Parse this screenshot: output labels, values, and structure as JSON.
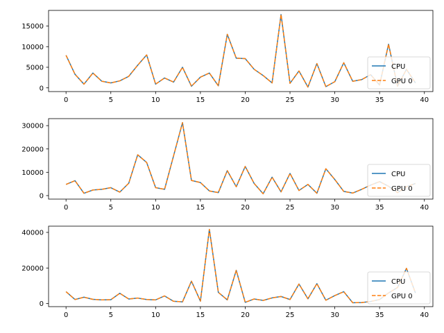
{
  "chart_data": [
    {
      "type": "line",
      "title": "",
      "xlabel": "",
      "ylabel": "",
      "xlim": [
        -1.95,
        40.95
      ],
      "ylim": [
        -900,
        18800
      ],
      "xticks": [
        0,
        5,
        10,
        15,
        20,
        25,
        30,
        35,
        40
      ],
      "xtick_labels": [
        "0",
        "5",
        "10",
        "15",
        "20",
        "25",
        "30",
        "35",
        "40"
      ],
      "yticks": [
        0,
        5000,
        10000,
        15000
      ],
      "ytick_labels": [
        "0",
        "5000",
        "10000",
        "15000"
      ],
      "legend": {
        "placement": "lower-right",
        "entries": [
          "CPU",
          "GPU 0"
        ]
      },
      "grid": false,
      "x": [
        0,
        1,
        2,
        3,
        4,
        5,
        6,
        7,
        8,
        9,
        10,
        11,
        12,
        13,
        14,
        15,
        16,
        17,
        18,
        19,
        20,
        21,
        22,
        23,
        24,
        25,
        26,
        27,
        28,
        29,
        30,
        31,
        32,
        33,
        34,
        35,
        36,
        37,
        38,
        39
      ],
      "series": [
        {
          "name": "CPU",
          "color": "#1f77b4",
          "style": "solid",
          "values": [
            7900,
            3300,
            900,
            3600,
            1600,
            1200,
            1700,
            2800,
            5500,
            8000,
            900,
            2400,
            1400,
            5000,
            400,
            2600,
            3600,
            500,
            13000,
            7200,
            7100,
            4500,
            3000,
            1200,
            17800,
            1100,
            4100,
            200,
            5900,
            300,
            1500,
            6100,
            1600,
            2000,
            3200,
            700,
            10600,
            400,
            4500,
            1200
          ]
        },
        {
          "name": "GPU 0",
          "color": "#ff7f0e",
          "style": "dashed",
          "values": [
            7900,
            3300,
            900,
            3600,
            1600,
            1200,
            1700,
            2800,
            5500,
            8000,
            900,
            2400,
            1400,
            5000,
            400,
            2600,
            3600,
            500,
            13000,
            7200,
            7100,
            4500,
            3000,
            1200,
            17800,
            1100,
            4100,
            200,
            5900,
            300,
            1500,
            6100,
            1600,
            2000,
            3200,
            700,
            10600,
            400,
            4500,
            1200
          ]
        }
      ]
    },
    {
      "type": "line",
      "title": "",
      "xlabel": "",
      "ylabel": "",
      "xlim": [
        -1.95,
        40.95
      ],
      "ylim": [
        -1500,
        33000
      ],
      "xticks": [
        0,
        5,
        10,
        15,
        20,
        25,
        30,
        35,
        40
      ],
      "xtick_labels": [
        "0",
        "5",
        "10",
        "15",
        "20",
        "25",
        "30",
        "35",
        "40"
      ],
      "yticks": [
        0,
        10000,
        20000,
        30000
      ],
      "ytick_labels": [
        "0",
        "10000",
        "20000",
        "30000"
      ],
      "legend": {
        "placement": "lower-right",
        "entries": [
          "CPU",
          "GPU 0"
        ]
      },
      "grid": false,
      "x": [
        0,
        1,
        2,
        3,
        4,
        5,
        6,
        7,
        8,
        9,
        10,
        11,
        12,
        13,
        14,
        15,
        16,
        17,
        18,
        19,
        20,
        21,
        22,
        23,
        24,
        25,
        26,
        27,
        28,
        29,
        30,
        31,
        32,
        33,
        34,
        35,
        36,
        37,
        38,
        39
      ],
      "series": [
        {
          "name": "CPU",
          "color": "#1f77b4",
          "style": "solid",
          "values": [
            4800,
            6400,
            1000,
            2400,
            2700,
            3400,
            1500,
            5300,
            17500,
            14200,
            3400,
            2700,
            17000,
            31300,
            6500,
            5600,
            2000,
            1300,
            10700,
            3800,
            12500,
            5200,
            800,
            7900,
            1600,
            9500,
            2200,
            4800,
            1000,
            11500,
            6900,
            1800,
            1100,
            2700,
            4500,
            6000,
            4000,
            1300,
            3800,
            5200
          ]
        },
        {
          "name": "GPU 0",
          "color": "#ff7f0e",
          "style": "dashed",
          "values": [
            4800,
            6400,
            1000,
            2400,
            2700,
            3400,
            1500,
            5300,
            17500,
            14200,
            3400,
            2700,
            17000,
            31300,
            6500,
            5600,
            2000,
            1300,
            10700,
            3800,
            12500,
            5200,
            800,
            7900,
            1600,
            9500,
            2200,
            4800,
            1000,
            11500,
            6900,
            1800,
            1100,
            2700,
            4500,
            6000,
            4000,
            1300,
            3800,
            5200
          ]
        }
      ]
    },
    {
      "type": "line",
      "title": "",
      "xlabel": "",
      "ylabel": "",
      "xlim": [
        -1.95,
        40.95
      ],
      "ylim": [
        -1700,
        43500
      ],
      "xticks": [
        0,
        5,
        10,
        15,
        20,
        25,
        30,
        35,
        40
      ],
      "xtick_labels": [
        "0",
        "5",
        "10",
        "15",
        "20",
        "25",
        "30",
        "35",
        "40"
      ],
      "yticks": [
        0,
        20000,
        40000
      ],
      "ytick_labels": [
        "0",
        "20000",
        "40000"
      ],
      "legend": {
        "placement": "lower-right",
        "entries": [
          "CPU",
          "GPU 0"
        ]
      },
      "grid": false,
      "x": [
        0,
        1,
        2,
        3,
        4,
        5,
        6,
        7,
        8,
        9,
        10,
        11,
        12,
        13,
        14,
        15,
        16,
        17,
        18,
        19,
        20,
        21,
        22,
        23,
        24,
        25,
        26,
        27,
        28,
        29,
        30,
        31,
        32,
        33,
        34,
        35,
        36,
        37,
        38,
        39
      ],
      "series": [
        {
          "name": "CPU",
          "color": "#1f77b4",
          "style": "solid",
          "values": [
            6700,
            2300,
            3600,
            2400,
            2100,
            2200,
            5800,
            2600,
            3100,
            2300,
            2100,
            4300,
            1300,
            1000,
            12600,
            1400,
            41700,
            6300,
            2100,
            18700,
            700,
            2600,
            1800,
            3200,
            4000,
            2300,
            11000,
            2700,
            11200,
            1900,
            4500,
            6700,
            500,
            600,
            1200,
            2300,
            6000,
            9000,
            19800,
            6000
          ]
        },
        {
          "name": "GPU 0",
          "color": "#ff7f0e",
          "style": "dashed",
          "values": [
            6700,
            2300,
            3600,
            2400,
            2100,
            2200,
            5800,
            2600,
            3100,
            2300,
            2100,
            4300,
            1300,
            1000,
            12600,
            1400,
            41700,
            6300,
            2100,
            18700,
            700,
            2600,
            1800,
            3200,
            4000,
            2300,
            11000,
            2700,
            11200,
            1900,
            4500,
            6700,
            500,
            600,
            1200,
            2300,
            6000,
            9000,
            19800,
            6000
          ]
        }
      ]
    }
  ]
}
